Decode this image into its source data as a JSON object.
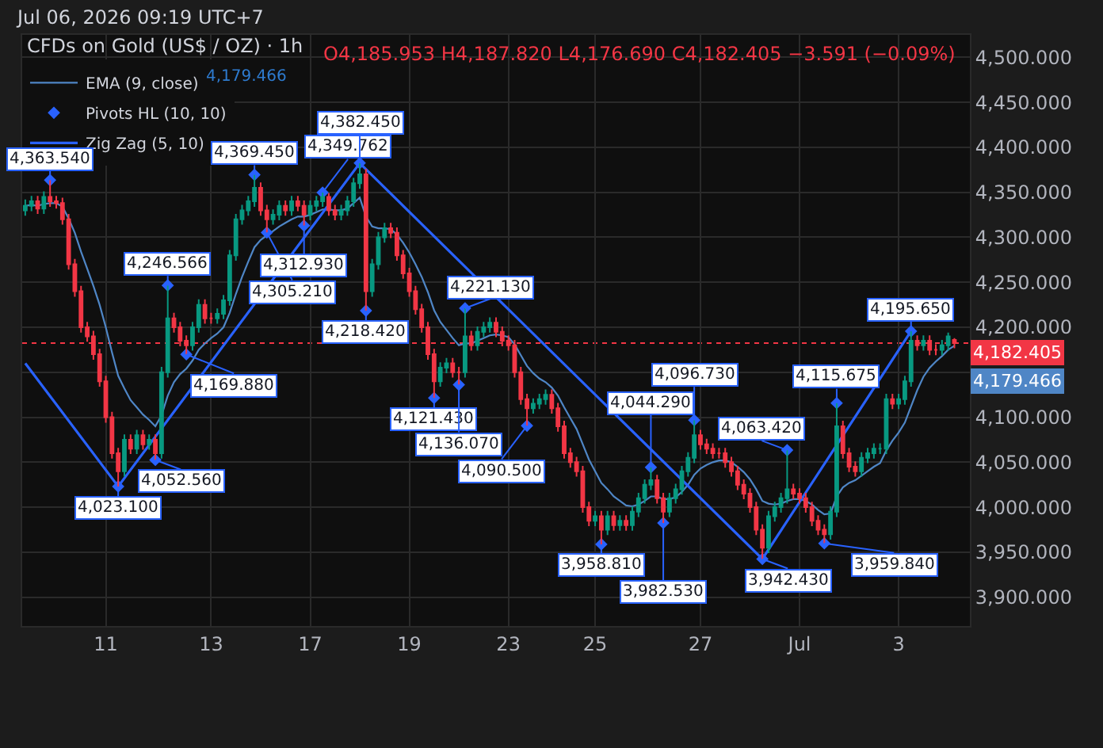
{
  "chart_data": {
    "type": "candlestick",
    "title": "CFDs on Gold (US$ / OZ) · 1h",
    "annotations": [
      "Jul 06, 2026 09:19 UTC+7",
      "O4,185.953 H4,187.820 L4,176.690 C4,182.405 −3.591 (−0.09%)",
      "4,179.466",
      "4,179.466"
    ],
    "categories": [
      null,
      null,
      null,
      null,
      null,
      null,
      null,
      null,
      null,
      null,
      null,
      null,
      null,
      "11",
      null,
      null,
      null,
      null,
      null,
      null,
      null,
      null,
      null,
      null,
      null,
      null,
      null,
      null,
      null,
      null,
      "13",
      null,
      null,
      null,
      null,
      null,
      null,
      null,
      null,
      null,
      null,
      null,
      null,
      null,
      null,
      null,
      "17",
      null,
      null,
      null,
      null,
      null,
      null,
      null,
      null,
      null,
      null,
      null,
      null,
      null,
      null,
      null,
      "19",
      null,
      null,
      null,
      null,
      null,
      null,
      null,
      null,
      null,
      null,
      null,
      null,
      null,
      null,
      null,
      "23",
      null,
      null,
      null,
      null,
      null,
      null,
      null,
      null,
      null,
      null,
      null,
      null,
      null,
      "25",
      null,
      null,
      null,
      null,
      null,
      null,
      null,
      null,
      null,
      null,
      null,
      null,
      null,
      null,
      null,
      null,
      "27",
      null,
      null,
      null,
      null,
      null,
      null,
      null,
      null,
      null,
      null,
      null,
      null,
      null,
      null,
      null,
      "Jul",
      null,
      null,
      null,
      null,
      null,
      null,
      null,
      null,
      null,
      null,
      null,
      null,
      null,
      null,
      null,
      "3",
      null,
      null,
      null,
      null,
      null,
      null,
      null,
      null,
      null
    ],
    "ohlc": [
      [
        4330,
        4342,
        4324,
        4335
      ],
      [
        4335,
        4346,
        4329,
        4340
      ],
      [
        4340,
        4346,
        4326,
        4332
      ],
      [
        4332,
        4351,
        4326,
        4345
      ],
      [
        4345,
        4363.54,
        4334,
        4340
      ],
      [
        4340,
        4346,
        4332,
        4338
      ],
      [
        4338,
        4344,
        4314,
        4320
      ],
      [
        4320,
        4326,
        4264,
        4270
      ],
      [
        4270,
        4276,
        4234,
        4240
      ],
      [
        4240,
        4246,
        4194,
        4200
      ],
      [
        4200,
        4206,
        4184,
        4190
      ],
      [
        4190,
        4196,
        4164,
        4170
      ],
      [
        4170,
        4176,
        4134,
        4140
      ],
      [
        4140,
        4146,
        4094,
        4100
      ],
      [
        4100,
        4106,
        4054,
        4060
      ],
      [
        4060,
        4066,
        4023.1,
        4040
      ],
      [
        4040,
        4081,
        4034,
        4075
      ],
      [
        4075,
        4081,
        4059,
        4065
      ],
      [
        4065,
        4086,
        4059,
        4080
      ],
      [
        4080,
        4086,
        4064,
        4070
      ],
      [
        4070,
        4081,
        4064,
        4075
      ],
      [
        4075,
        4081,
        4052.56,
        4060
      ],
      [
        4060,
        4156,
        4054,
        4150
      ],
      [
        4150,
        4246.566,
        4144,
        4210
      ],
      [
        4210,
        4216,
        4194,
        4200
      ],
      [
        4200,
        4206,
        4179,
        4185
      ],
      [
        4185,
        4191,
        4169.88,
        4180
      ],
      [
        4180,
        4206,
        4174,
        4200
      ],
      [
        4200,
        4231,
        4194,
        4225
      ],
      [
        4225,
        4231,
        4204,
        4210
      ],
      [
        4210,
        4216,
        4204,
        4210
      ],
      [
        4210,
        4221,
        4204,
        4215
      ],
      [
        4215,
        4236,
        4209,
        4230
      ],
      [
        4230,
        4286,
        4224,
        4280
      ],
      [
        4280,
        4326,
        4274,
        4320
      ],
      [
        4320,
        4336,
        4314,
        4330
      ],
      [
        4330,
        4346,
        4324,
        4340
      ],
      [
        4340,
        4369.45,
        4334,
        4355
      ],
      [
        4355,
        4361,
        4324,
        4330
      ],
      [
        4330,
        4336,
        4305.21,
        4320
      ],
      [
        4320,
        4331,
        4314,
        4325
      ],
      [
        4325,
        4341,
        4319,
        4335
      ],
      [
        4335,
        4341,
        4324,
        4330
      ],
      [
        4330,
        4346,
        4324,
        4340
      ],
      [
        4340,
        4346,
        4329,
        4335
      ],
      [
        4335,
        4341,
        4312.93,
        4325
      ],
      [
        4325,
        4341,
        4319,
        4335
      ],
      [
        4335,
        4346,
        4329,
        4340
      ],
      [
        4340,
        4349.762,
        4334,
        4345
      ],
      [
        4345,
        4349,
        4324,
        4330
      ],
      [
        4330,
        4336,
        4319,
        4325
      ],
      [
        4325,
        4336,
        4319,
        4330
      ],
      [
        4330,
        4346,
        4324,
        4340
      ],
      [
        4340,
        4366,
        4334,
        4360
      ],
      [
        4360,
        4382.45,
        4354,
        4370
      ],
      [
        4370,
        4376,
        4218.42,
        4240
      ],
      [
        4240,
        4276,
        4234,
        4270
      ],
      [
        4270,
        4306,
        4264,
        4300
      ],
      [
        4300,
        4316,
        4294,
        4310
      ],
      [
        4310,
        4316,
        4299,
        4305
      ],
      [
        4305,
        4311,
        4274,
        4280
      ],
      [
        4280,
        4286,
        4254,
        4260
      ],
      [
        4260,
        4266,
        4234,
        4240
      ],
      [
        4240,
        4246,
        4214,
        4220
      ],
      [
        4220,
        4226,
        4194,
        4200
      ],
      [
        4200,
        4206,
        4164,
        4170
      ],
      [
        4170,
        4176,
        4121.43,
        4140
      ],
      [
        4140,
        4161,
        4134,
        4155
      ],
      [
        4155,
        4166,
        4149,
        4160
      ],
      [
        4160,
        4166,
        4144,
        4150
      ],
      [
        4150,
        4156,
        4136.07,
        4150
      ],
      [
        4150,
        4221.13,
        4144,
        4190
      ],
      [
        4190,
        4196,
        4174,
        4180
      ],
      [
        4180,
        4201,
        4174,
        4195
      ],
      [
        4195,
        4206,
        4189,
        4200
      ],
      [
        4200,
        4211,
        4194,
        4205
      ],
      [
        4205,
        4211,
        4189,
        4195
      ],
      [
        4195,
        4201,
        4179,
        4185
      ],
      [
        4185,
        4191,
        4174,
        4180
      ],
      [
        4180,
        4186,
        4144,
        4150
      ],
      [
        4150,
        4156,
        4114,
        4120
      ],
      [
        4120,
        4126,
        4090.5,
        4110
      ],
      [
        4110,
        4121,
        4104,
        4115
      ],
      [
        4115,
        4126,
        4109,
        4120
      ],
      [
        4120,
        4131,
        4114,
        4125
      ],
      [
        4125,
        4131,
        4104,
        4110
      ],
      [
        4110,
        4116,
        4084,
        4090
      ],
      [
        4090,
        4096,
        4054,
        4060
      ],
      [
        4060,
        4066,
        4044,
        4050
      ],
      [
        4050,
        4056,
        4034,
        4040
      ],
      [
        4040,
        4046,
        3994,
        4000
      ],
      [
        4000,
        4006,
        3979,
        3985
      ],
      [
        3985,
        3996,
        3979,
        3990
      ],
      [
        3990,
        3996,
        3958.81,
        3975
      ],
      [
        3975,
        3996,
        3969,
        3990
      ],
      [
        3990,
        3996,
        3974,
        3980
      ],
      [
        3980,
        3991,
        3974,
        3985
      ],
      [
        3985,
        3991,
        3974,
        3980
      ],
      [
        3980,
        4001,
        3974,
        3995
      ],
      [
        3995,
        4016,
        3989,
        4010
      ],
      [
        4010,
        4031,
        4004,
        4025
      ],
      [
        4025,
        4044.29,
        4019,
        4030
      ],
      [
        4030,
        4036,
        4004,
        4010
      ],
      [
        4010,
        4016,
        3982.53,
        3995
      ],
      [
        3995,
        4016,
        3989,
        4010
      ],
      [
        4010,
        4026,
        4004,
        4020
      ],
      [
        4020,
        4046,
        4014,
        4040
      ],
      [
        4040,
        4061,
        4034,
        4055
      ],
      [
        4055,
        4096.73,
        4049,
        4080
      ],
      [
        4080,
        4086,
        4064,
        4070
      ],
      [
        4070,
        4076,
        4059,
        4065
      ],
      [
        4065,
        4071,
        4054,
        4060
      ],
      [
        4060,
        4066,
        4054,
        4060
      ],
      [
        4060,
        4066,
        4044,
        4050
      ],
      [
        4050,
        4056,
        4034,
        4040
      ],
      [
        4040,
        4046,
        4019,
        4025
      ],
      [
        4025,
        4031,
        4009,
        4015
      ],
      [
        4015,
        4021,
        3994,
        4000
      ],
      [
        4000,
        4006,
        3969,
        3975
      ],
      [
        3975,
        3981,
        3942.43,
        3955
      ],
      [
        3955,
        3996,
        3949,
        3990
      ],
      [
        3990,
        4006,
        3984,
        4000
      ],
      [
        4000,
        4016,
        3994,
        4010
      ],
      [
        4010,
        4063.42,
        4004,
        4020
      ],
      [
        4020,
        4026,
        4009,
        4015
      ],
      [
        4015,
        4021,
        4004,
        4010
      ],
      [
        4010,
        4016,
        3994,
        4000
      ],
      [
        4000,
        4006,
        3979,
        3985
      ],
      [
        3985,
        3991,
        3969,
        3975
      ],
      [
        3975,
        3981,
        3959.84,
        3970
      ],
      [
        3970,
        4001,
        3964,
        3995
      ],
      [
        3995,
        4115.675,
        3989,
        4090
      ],
      [
        4090,
        4096,
        4054,
        4060
      ],
      [
        4060,
        4066,
        4039,
        4045
      ],
      [
        4045,
        4051,
        4034,
        4040
      ],
      [
        4040,
        4061,
        4034,
        4055
      ],
      [
        4055,
        4066,
        4049,
        4060
      ],
      [
        4060,
        4071,
        4054,
        4065
      ],
      [
        4065,
        4071,
        4059,
        4065
      ],
      [
        4065,
        4126,
        4059,
        4120
      ],
      [
        4120,
        4126,
        4109,
        4115
      ],
      [
        4115,
        4126,
        4109,
        4120
      ],
      [
        4120,
        4146,
        4114,
        4140
      ],
      [
        4140,
        4195.65,
        4134,
        4185
      ],
      [
        4185,
        4191,
        4174,
        4180
      ],
      [
        4180,
        4191,
        4174,
        4185
      ],
      [
        4185,
        4191,
        4169,
        4175
      ],
      [
        4175,
        4181,
        4169,
        4175
      ],
      [
        4175,
        4186,
        4169,
        4180
      ],
      [
        4180,
        4194,
        4174,
        4190
      ],
      [
        4185.953,
        4187.82,
        4176.69,
        4182.405
      ]
    ],
    "series": [
      {
        "name": "EMA (9, close)",
        "type": "line",
        "color": "#4f86c6",
        "values": [
          4335,
          4336,
          4335,
          4337,
          4338,
          4338,
          4334,
          4321,
          4305,
          4284,
          4265,
          4246,
          4225,
          4200,
          4172,
          4146,
          4132,
          4119,
          4111,
          4103,
          4097,
          4090,
          4102,
          4124,
          4139,
          4148,
          4154,
          4163,
          4175,
          4182,
          4188,
          4193,
          4200,
          4216,
          4237,
          4256,
          4273,
          4289,
          4297,
          4302,
          4307,
          4312,
          4316,
          4320,
          4323,
          4323,
          4325,
          4328,
          4331,
          4331,
          4330,
          4330,
          4332,
          4338,
          4344,
          4323,
          4312,
          4310,
          4310,
          4309,
          4303,
          4294,
          4283,
          4270,
          4256,
          4239,
          4219,
          4206,
          4197,
          4188,
          4180,
          4182,
          4182,
          4185,
          4188,
          4191,
          4192,
          4191,
          4189,
          4181,
          4169,
          4157,
          4149,
          4143,
          4139,
          4133,
          4124,
          4111,
          4099,
          4087,
          4070,
          4053,
          4040,
          4027,
          4020,
          4012,
          4007,
          4002,
          4001,
          4003,
          4007,
          4012,
          4012,
          4009,
          4009,
          4011,
          4017,
          4025,
          4036,
          4043,
          4047,
          4050,
          4052,
          4052,
          4050,
          4045,
          4039,
          4031,
          4020,
          4007,
          4004,
          4003,
          4004,
          4007,
          4009,
          4009,
          4007,
          4003,
          3997,
          3992,
          3993,
          4012,
          4022,
          4027,
          4030,
          4035,
          4040,
          4045,
          4049,
          4063,
          4074,
          4083,
          4094,
          4112,
          4130,
          4145,
          4155,
          4162,
          4168,
          4175,
          4179.466
        ]
      },
      {
        "name": "Pivots HL (10, 10)",
        "type": "scatter",
        "marker": "diamond",
        "color": "#2962ff",
        "values": [
          null,
          null,
          null,
          null,
          4363.54,
          null,
          null,
          null,
          null,
          null,
          null,
          null,
          null,
          null,
          null,
          4023.1,
          null,
          null,
          null,
          null,
          null,
          4052.56,
          null,
          4246.566,
          null,
          null,
          4169.88,
          null,
          null,
          null,
          null,
          null,
          null,
          null,
          null,
          null,
          null,
          4369.45,
          null,
          4305.21,
          null,
          null,
          null,
          null,
          null,
          4312.93,
          null,
          null,
          4349.762,
          null,
          null,
          null,
          null,
          null,
          4382.45,
          4218.42,
          null,
          null,
          null,
          null,
          null,
          null,
          null,
          null,
          null,
          null,
          4121.43,
          null,
          null,
          null,
          4136.07,
          4221.13,
          null,
          null,
          null,
          null,
          null,
          null,
          null,
          null,
          null,
          4090.5,
          null,
          null,
          null,
          null,
          null,
          null,
          null,
          null,
          null,
          null,
          null,
          3958.81,
          null,
          null,
          null,
          null,
          null,
          null,
          null,
          4044.29,
          null,
          3982.53,
          null,
          null,
          null,
          null,
          4096.73,
          null,
          null,
          null,
          null,
          null,
          null,
          null,
          null,
          null,
          null,
          3942.43,
          null,
          null,
          null,
          4063.42,
          null,
          null,
          null,
          null,
          null,
          3959.84,
          null,
          4115.675,
          null,
          null,
          null,
          null,
          null,
          null,
          null,
          null,
          null,
          null,
          null,
          4195.65,
          null,
          null,
          null,
          null,
          null,
          null,
          null
        ],
        "value_labels": [
          null,
          null,
          null,
          null,
          "4,363.540",
          null,
          null,
          null,
          null,
          null,
          null,
          null,
          null,
          null,
          null,
          "4,023.100",
          null,
          null,
          null,
          null,
          null,
          "4,052.560",
          null,
          "4,246.566",
          null,
          null,
          "4,169.880",
          null,
          null,
          null,
          null,
          null,
          null,
          null,
          null,
          null,
          null,
          "4,369.450",
          null,
          "4,305.210",
          null,
          null,
          null,
          null,
          null,
          "4,312.930",
          null,
          null,
          "4,349.762",
          null,
          null,
          null,
          null,
          null,
          "4,382.450",
          "4,218.420",
          null,
          null,
          null,
          null,
          null,
          null,
          null,
          null,
          null,
          null,
          "4,121.430",
          null,
          null,
          null,
          "4,136.070",
          "4,221.130",
          null,
          null,
          null,
          null,
          null,
          null,
          null,
          null,
          null,
          "4,090.500",
          null,
          null,
          null,
          null,
          null,
          null,
          null,
          null,
          null,
          null,
          null,
          "3,958.810",
          null,
          null,
          null,
          null,
          null,
          null,
          null,
          "4,044.290",
          null,
          "3,982.530",
          null,
          null,
          null,
          null,
          "4,096.730",
          null,
          null,
          null,
          null,
          null,
          null,
          null,
          null,
          null,
          null,
          "3,942.430",
          null,
          null,
          null,
          "4,063.420",
          null,
          null,
          null,
          null,
          null,
          "3,959.840",
          null,
          "4,115.675",
          null,
          null,
          null,
          null,
          null,
          null,
          null,
          null,
          null,
          null,
          null,
          "4,195.650",
          null,
          null,
          null,
          null,
          null,
          null,
          null
        ]
      },
      {
        "name": "Zig Zag (5, 10)",
        "type": "line",
        "color": "#2962ff",
        "values": [
          4160,
          null,
          null,
          null,
          null,
          null,
          null,
          null,
          null,
          null,
          null,
          null,
          null,
          null,
          null,
          4023.1,
          null,
          null,
          null,
          null,
          null,
          null,
          null,
          null,
          null,
          null,
          null,
          null,
          null,
          null,
          null,
          null,
          null,
          null,
          null,
          null,
          null,
          null,
          null,
          null,
          null,
          null,
          null,
          null,
          null,
          null,
          null,
          null,
          null,
          null,
          null,
          null,
          null,
          null,
          4382.45,
          null,
          null,
          null,
          null,
          null,
          null,
          null,
          null,
          null,
          null,
          null,
          null,
          null,
          null,
          null,
          null,
          null,
          null,
          null,
          null,
          null,
          null,
          null,
          null,
          null,
          null,
          null,
          null,
          null,
          null,
          null,
          null,
          null,
          null,
          null,
          null,
          null,
          null,
          null,
          null,
          null,
          null,
          null,
          null,
          null,
          null,
          null,
          null,
          null,
          null,
          null,
          null,
          null,
          null,
          null,
          null,
          null,
          null,
          null,
          null,
          null,
          null,
          null,
          null,
          3942.43,
          null,
          null,
          null,
          null,
          null,
          null,
          null,
          null,
          null,
          null,
          null,
          null,
          null,
          null,
          null,
          null,
          null,
          null,
          null,
          null,
          null,
          null,
          null,
          4195.65,
          null,
          null,
          null,
          null,
          null,
          null,
          null
        ]
      }
    ],
    "ylim": [
      3868,
      4525
    ],
    "yticks": [
      {
        "value": 3900,
        "label": "3,900.000"
      },
      {
        "value": 3950,
        "label": "3,950.000"
      },
      {
        "value": 4000,
        "label": "4,000.000"
      },
      {
        "value": 4050,
        "label": "4,050.000"
      },
      {
        "value": 4100,
        "label": "4,100.000"
      },
      {
        "value": 4150,
        "label": null
      },
      {
        "value": 4200,
        "label": "4,200.000"
      },
      {
        "value": 4250,
        "label": "4,250.000"
      },
      {
        "value": 4300,
        "label": "4,300.000"
      },
      {
        "value": 4350,
        "label": "4,350.000"
      },
      {
        "value": 4400,
        "label": "4,400.000"
      },
      {
        "value": 4450,
        "label": "4,450.000"
      },
      {
        "value": 4500,
        "label": "4,500.000"
      }
    ],
    "ref_lines": [
      {
        "axis": "y",
        "value": 4182.405,
        "label": "4,182.405",
        "color": "#f23645",
        "line_style": "dotted"
      }
    ],
    "grid": true,
    "legend": "top left"
  }
}
